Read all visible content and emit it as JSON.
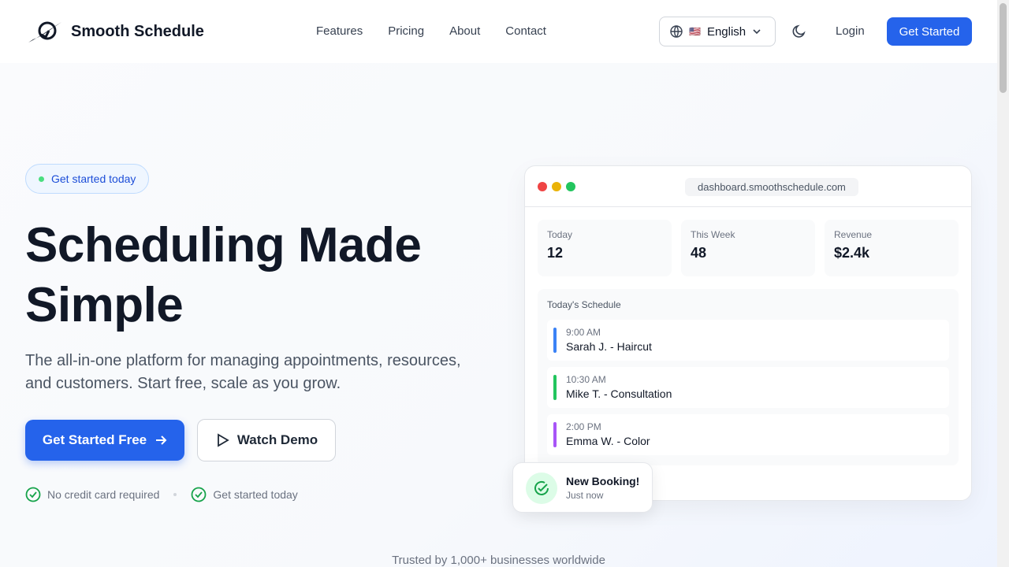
{
  "brand": {
    "name": "Smooth Schedule"
  },
  "nav": {
    "links": [
      "Features",
      "Pricing",
      "About",
      "Contact"
    ],
    "language": "English",
    "login": "Login",
    "cta": "Get Started"
  },
  "hero": {
    "badge": "Get started today",
    "title_line1": "Scheduling Made",
    "title_line2": "Simple",
    "subtitle": "The all-in-one platform for managing appointments, resources, and customers. Start free, scale as you grow.",
    "primary": "Get Started Free",
    "secondary": "Watch Demo",
    "checks": [
      "No credit card required",
      "Get started today"
    ]
  },
  "dashboard": {
    "url": "dashboard.smoothschedule.com",
    "stats": [
      {
        "label": "Today",
        "value": "12"
      },
      {
        "label": "This Week",
        "value": "48"
      },
      {
        "label": "Revenue",
        "value": "$2.4k"
      }
    ],
    "schedule_title": "Today's Schedule",
    "items": [
      {
        "time": "9:00 AM",
        "name": "Sarah J. - Haircut",
        "color": "#3b82f6"
      },
      {
        "time": "10:30 AM",
        "name": "Mike T. - Consultation",
        "color": "#22c55e"
      },
      {
        "time": "2:00 PM",
        "name": "Emma W. - Color",
        "color": "#a855f7"
      }
    ]
  },
  "toast": {
    "title": "New Booking!",
    "subtitle": "Just now"
  },
  "trust": "Trusted by 1,000+ businesses worldwide",
  "colors": {
    "primary": "#2563eb"
  }
}
